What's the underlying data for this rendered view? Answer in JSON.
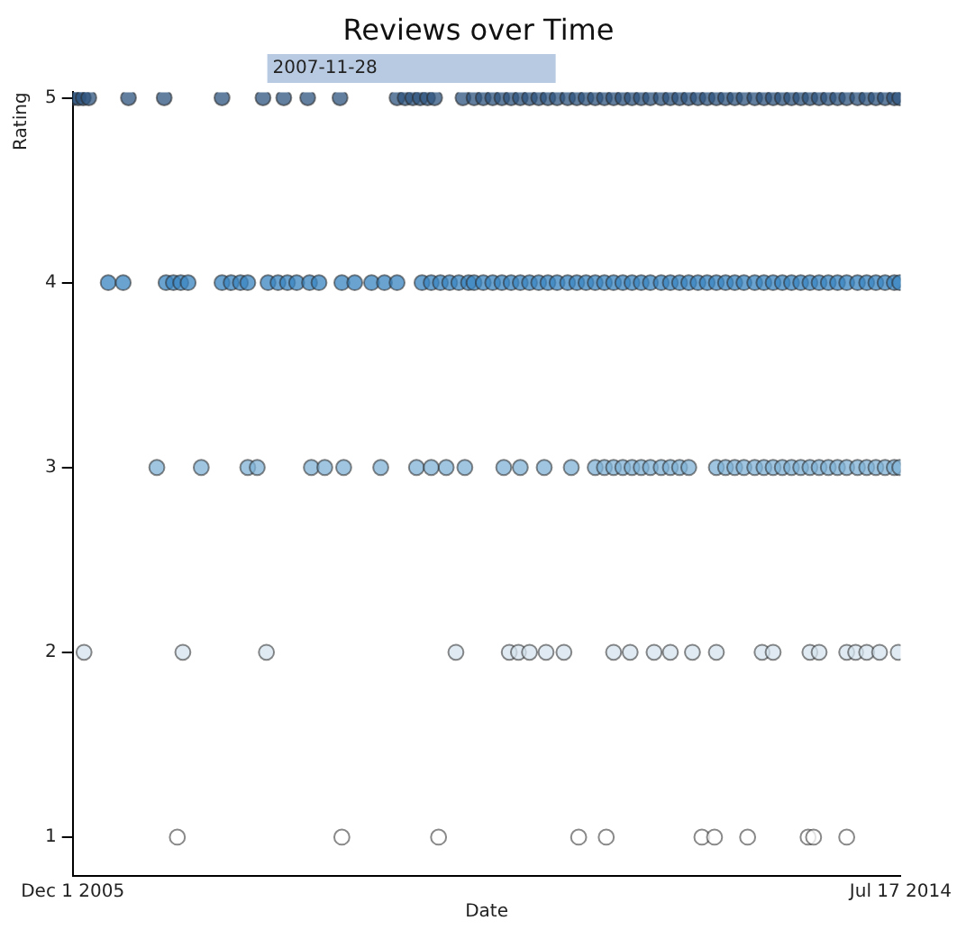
{
  "chart_data": {
    "type": "scatter",
    "title": "Reviews over Time",
    "xlabel": "Date",
    "ylabel": "Rating",
    "marker": "circle",
    "grid": false,
    "legend": false,
    "xlim": [
      "2005-12-01",
      "2014-07-17"
    ],
    "xticks": [
      {
        "value": "2005-12-01",
        "label": "Dec 1 2005"
      },
      {
        "value": "2014-07-17",
        "label": "Jul 17 2014"
      }
    ],
    "ylim": [
      0.79,
      5.03
    ],
    "yticks": [
      1,
      2,
      3,
      4,
      5
    ],
    "annotations": [
      "2007-11-28"
    ],
    "series": [
      {
        "color": "#2f5580",
        "x": [
          "2005-12-01",
          "2005-12-22",
          "2006-01-10",
          "2006-01-31",
          "2006-07-01",
          "2006-11-14",
          "2007-06-22",
          "2007-11-25",
          "2008-02-12",
          "2008-05-13",
          "2008-09-13",
          "2009-04-18",
          "2009-05-19",
          "2009-06-17",
          "2009-07-15",
          "2009-08-12",
          "2009-09-08",
          "2009-12-25",
          "2010-02-05",
          "2010-03-12",
          "2010-04-17",
          "2010-05-22",
          "2010-06-26",
          "2010-07-31",
          "2010-09-04",
          "2010-10-09",
          "2010-11-13",
          "2010-12-18",
          "2011-01-27",
          "2011-03-03",
          "2011-04-07",
          "2011-05-12",
          "2011-06-16",
          "2011-07-21",
          "2011-08-25",
          "2011-09-29",
          "2011-11-03",
          "2011-12-08",
          "2012-01-18",
          "2012-02-22",
          "2012-03-28",
          "2012-05-02",
          "2012-06-06",
          "2012-07-11",
          "2012-08-15",
          "2012-09-19",
          "2012-10-24",
          "2012-11-28",
          "2013-01-08",
          "2013-02-12",
          "2013-03-19",
          "2013-04-23",
          "2013-05-28",
          "2013-07-02",
          "2013-08-06",
          "2013-09-10",
          "2013-10-15",
          "2013-11-19",
          "2013-12-24",
          "2014-02-03",
          "2014-03-10",
          "2014-04-14",
          "2014-05-19",
          "2014-06-23",
          "2014-07-14"
        ],
        "values": [
          5,
          5,
          5,
          5,
          5,
          5,
          5,
          5,
          5,
          5,
          5,
          5,
          5,
          5,
          5,
          5,
          5,
          5,
          5,
          5,
          5,
          5,
          5,
          5,
          5,
          5,
          5,
          5,
          5,
          5,
          5,
          5,
          5,
          5,
          5,
          5,
          5,
          5,
          5,
          5,
          5,
          5,
          5,
          5,
          5,
          5,
          5,
          5,
          5,
          5,
          5,
          5,
          5,
          5,
          5,
          5,
          5,
          5,
          5,
          5,
          5,
          5,
          5,
          5,
          5
        ]
      },
      {
        "color": "#3a85c0",
        "x": [
          "2006-04-15",
          "2006-06-11",
          "2006-11-21",
          "2006-12-19",
          "2007-01-16",
          "2007-02-13",
          "2007-06-22",
          "2007-07-27",
          "2007-08-31",
          "2007-09-28",
          "2007-12-14",
          "2008-01-21",
          "2008-02-26",
          "2008-04-01",
          "2008-05-20",
          "2008-06-25",
          "2008-09-20",
          "2008-11-08",
          "2009-01-11",
          "2009-03-01",
          "2009-04-18",
          "2009-07-22",
          "2009-08-26",
          "2009-09-30",
          "2009-11-04",
          "2009-12-09",
          "2010-01-15",
          "2010-02-05",
          "2010-03-12",
          "2010-04-17",
          "2010-05-22",
          "2010-06-26",
          "2010-07-31",
          "2010-09-04",
          "2010-10-09",
          "2010-11-13",
          "2010-12-18",
          "2011-01-27",
          "2011-03-03",
          "2011-04-07",
          "2011-05-12",
          "2011-06-16",
          "2011-07-21",
          "2011-08-25",
          "2011-09-29",
          "2011-11-03",
          "2011-12-08",
          "2012-01-18",
          "2012-02-22",
          "2012-03-28",
          "2012-05-02",
          "2012-06-06",
          "2012-07-11",
          "2012-08-15",
          "2012-09-19",
          "2012-10-24",
          "2012-11-28",
          "2013-01-08",
          "2013-02-12",
          "2013-03-19",
          "2013-04-23",
          "2013-05-28",
          "2013-07-02",
          "2013-08-06",
          "2013-09-10",
          "2013-10-15",
          "2013-11-19",
          "2013-12-24",
          "2014-02-03",
          "2014-03-10",
          "2014-04-14",
          "2014-05-19",
          "2014-06-23",
          "2014-07-14"
        ],
        "values": [
          4,
          4,
          4,
          4,
          4,
          4,
          4,
          4,
          4,
          4,
          4,
          4,
          4,
          4,
          4,
          4,
          4,
          4,
          4,
          4,
          4,
          4,
          4,
          4,
          4,
          4,
          4,
          4,
          4,
          4,
          4,
          4,
          4,
          4,
          4,
          4,
          4,
          4,
          4,
          4,
          4,
          4,
          4,
          4,
          4,
          4,
          4,
          4,
          4,
          4,
          4,
          4,
          4,
          4,
          4,
          4,
          4,
          4,
          4,
          4,
          4,
          4,
          4,
          4,
          4,
          4,
          4,
          4,
          4,
          4,
          4,
          4,
          4,
          4
        ]
      },
      {
        "color": "#7fb2d6",
        "x": [
          "2006-10-17",
          "2007-04-04",
          "2007-09-28",
          "2007-11-03",
          "2008-05-27",
          "2008-07-17",
          "2008-09-27",
          "2009-02-15",
          "2009-07-01",
          "2009-08-26",
          "2009-10-22",
          "2010-01-01",
          "2010-05-29",
          "2010-07-31",
          "2010-10-30",
          "2011-02-10",
          "2011-05-12",
          "2011-06-16",
          "2011-07-21",
          "2011-08-25",
          "2011-09-29",
          "2011-11-03",
          "2011-12-08",
          "2012-01-18",
          "2012-02-22",
          "2012-03-28",
          "2012-05-02",
          "2012-08-15",
          "2012-09-19",
          "2012-10-24",
          "2012-11-28",
          "2013-01-08",
          "2013-02-12",
          "2013-03-19",
          "2013-04-23",
          "2013-05-28",
          "2013-07-02",
          "2013-08-06",
          "2013-09-10",
          "2013-10-15",
          "2013-11-19",
          "2013-12-24",
          "2014-02-03",
          "2014-03-10",
          "2014-04-14",
          "2014-05-19",
          "2014-06-23",
          "2014-07-14"
        ],
        "values": [
          3,
          3,
          3,
          3,
          3,
          3,
          3,
          3,
          3,
          3,
          3,
          3,
          3,
          3,
          3,
          3,
          3,
          3,
          3,
          3,
          3,
          3,
          3,
          3,
          3,
          3,
          3,
          3,
          3,
          3,
          3,
          3,
          3,
          3,
          3,
          3,
          3,
          3,
          3,
          3,
          3,
          3,
          3,
          3,
          3,
          3,
          3,
          3
        ]
      },
      {
        "color": "#d4e3ee",
        "x": [
          "2006-01-13",
          "2007-01-24",
          "2007-12-08",
          "2009-11-28",
          "2010-06-19",
          "2010-07-24",
          "2010-09-04",
          "2010-11-06",
          "2011-01-13",
          "2011-07-21",
          "2011-09-22",
          "2011-12-22",
          "2012-02-22",
          "2012-05-16",
          "2012-08-15",
          "2013-02-05",
          "2013-03-19",
          "2013-08-06",
          "2013-09-10",
          "2013-12-24",
          "2014-01-27",
          "2014-03-10",
          "2014-04-28",
          "2014-07-08"
        ],
        "values": [
          2,
          2,
          2,
          2,
          2,
          2,
          2,
          2,
          2,
          2,
          2,
          2,
          2,
          2,
          2,
          2,
          2,
          2,
          2,
          2,
          2,
          2,
          2,
          2
        ]
      },
      {
        "color": "#ffffff",
        "x": [
          "2007-01-03",
          "2008-09-20",
          "2009-09-23",
          "2011-03-10",
          "2011-06-23",
          "2012-06-21",
          "2012-08-08",
          "2012-12-12",
          "2013-07-30",
          "2013-08-20",
          "2013-12-24"
        ],
        "values": [
          1,
          1,
          1,
          1,
          1,
          1,
          1,
          1,
          1,
          1,
          1
        ]
      }
    ]
  }
}
